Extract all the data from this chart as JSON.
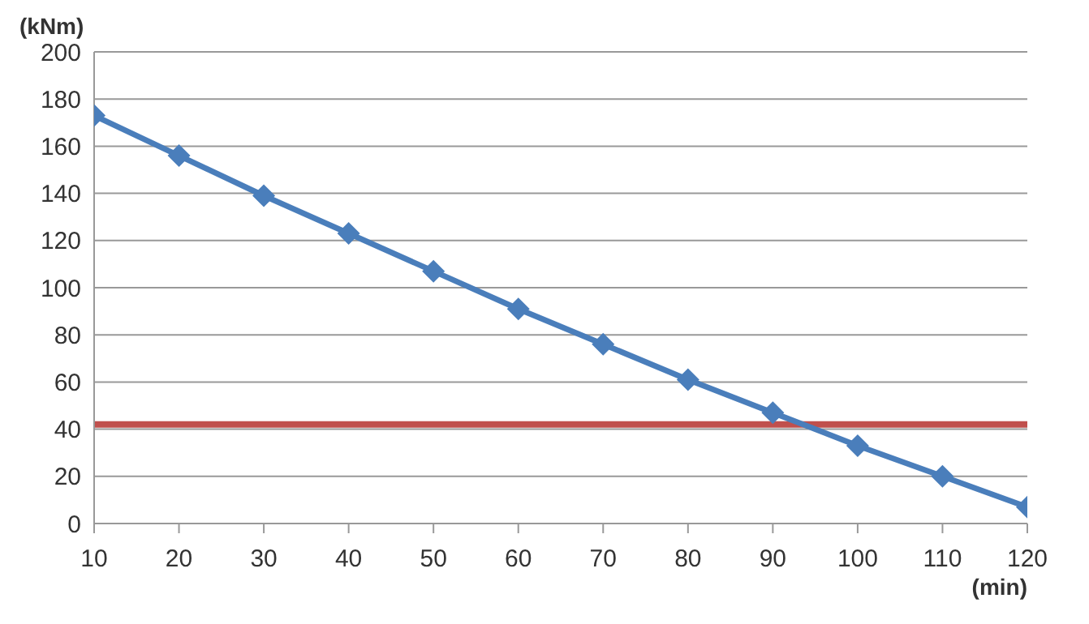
{
  "chart_data": {
    "type": "line",
    "ylabel": "(kNm)",
    "xlabel": "(min)",
    "x": [
      10,
      20,
      30,
      40,
      50,
      60,
      70,
      80,
      90,
      100,
      110,
      120
    ],
    "series": [
      {
        "color": "#4a7ebb",
        "values": [
          173,
          156,
          139,
          123,
          107,
          91,
          76,
          61,
          47,
          33,
          20,
          7
        ]
      }
    ],
    "xlim": [
      10,
      120
    ],
    "xticks": [
      10,
      20,
      30,
      40,
      50,
      60,
      70,
      80,
      90,
      100,
      110,
      120
    ],
    "ylim": [
      0,
      200
    ],
    "yticks": [
      0,
      20,
      40,
      60,
      80,
      100,
      120,
      140,
      160,
      180,
      200
    ],
    "ref_lines": [
      {
        "axis": "y",
        "value": 42,
        "color": "#c0504d"
      }
    ],
    "grid": "y",
    "marker": "diamond",
    "line_style": "solid"
  }
}
